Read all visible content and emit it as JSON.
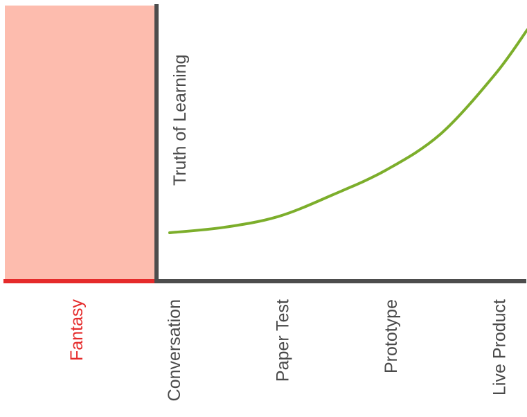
{
  "chart_data": {
    "type": "line",
    "ylabel": "Truth of Learning",
    "xlabel": "",
    "title": "",
    "fantasy_label": "Fantasy",
    "categories": [
      "Conversation",
      "Paper Test",
      "Prototype",
      "Live Product"
    ],
    "series": [
      {
        "x": [
          0,
          0.5,
          1,
          1.5,
          2,
          2.5,
          3,
          3.3
        ],
        "values": [
          0.27,
          0.3,
          0.36,
          0.48,
          0.62,
          0.82,
          1.15,
          1.4
        ]
      }
    ],
    "xlim": [
      -0.03,
      3.3
    ],
    "ylim": [
      0,
      1.4
    ],
    "grid": false,
    "colors": {
      "fantasy_fill": "#fdbcae",
      "fantasy_axis": "#e52b2b",
      "fantasy_label": "#e52b2b",
      "axis": "#4d4d4d",
      "curve": "#7cae2b"
    }
  }
}
